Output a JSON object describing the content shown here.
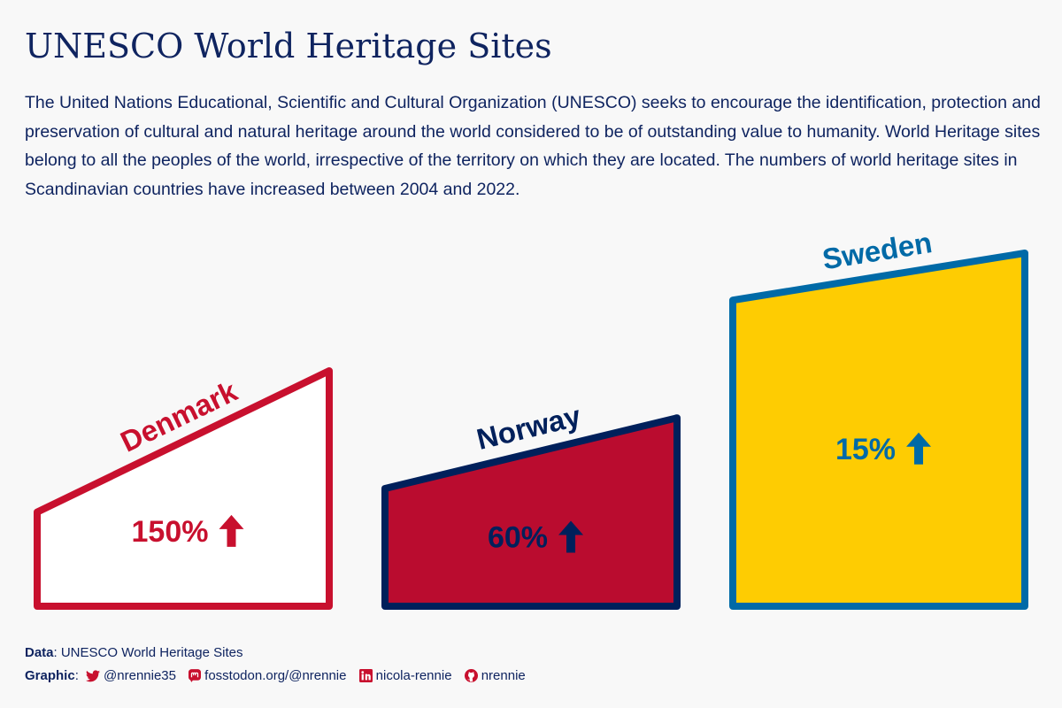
{
  "title": "UNESCO World Heritage Sites",
  "subtitle": "The United Nations Educational, Scientific and Cultural Organization (UNESCO) seeks to encourage the identification, protection and preservation of cultural and natural heritage around the world considered to be of outstanding value to humanity. World Heritage sites belong to all the peoples of the world, irrespective of the territory on which they are located. The numbers of world heritage sites in Scandinavian countries have increased between 2004 and 2022.",
  "chart_data": {
    "type": "bar",
    "categories": [
      "Denmark",
      "Norway",
      "Sweden"
    ],
    "series": [
      {
        "values": [
          4,
          5,
          13
        ]
      },
      {
        "values": [
          10,
          8,
          15
        ]
      }
    ],
    "labels": [
      "150%",
      "60%",
      "15%"
    ],
    "years": [
      2004,
      2022
    ],
    "colors": {
      "Denmark": {
        "fill": "#ffffff",
        "stroke": "#c8102e",
        "text": "#c8102e"
      },
      "Norway": {
        "fill": "#ba0c2f",
        "stroke": "#00205b",
        "text": "#00205b"
      },
      "Sweden": {
        "fill": "#fecc02",
        "stroke": "#006aa7",
        "text": "#006aa7"
      }
    },
    "up_arrow_icon": "arrow-up-icon",
    "grid": false,
    "legend": "none"
  },
  "footer": {
    "data_label": "Data",
    "data_value": ": UNESCO World Heritage Sites",
    "graphic_label": "Graphic",
    "graphic_sep": ":",
    "twitter_icon": "twitter-icon",
    "twitter": "@nrennie35",
    "mastodon_icon": "mastodon-icon",
    "mastodon": "fosstodon.org/@nrennie",
    "linkedin_icon": "linkedin-icon",
    "linkedin": "nicola-rennie",
    "github_icon": "github-icon",
    "github": "nrennie"
  }
}
